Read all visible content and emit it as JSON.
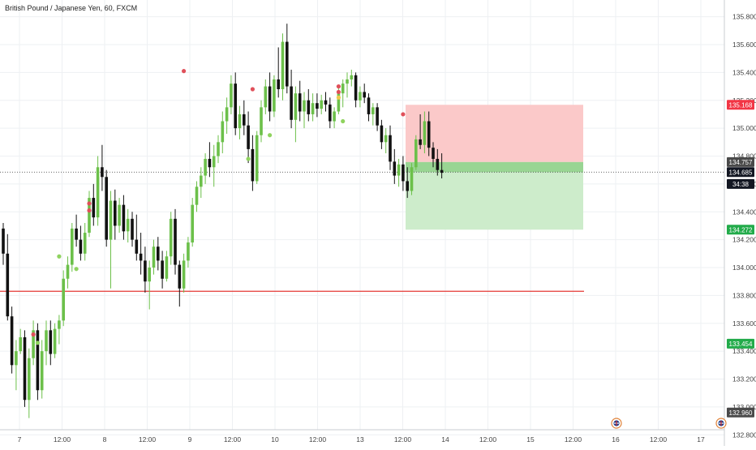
{
  "title": "British Pound / Japanese Yen, 60, FXCM",
  "colors": {
    "up": "#6cc04a",
    "down": "#111111",
    "signal_red": "#e0505a",
    "signal_green": "#8fd35f",
    "signal_yellow": "#f2c94c",
    "level_line": "#e53935",
    "stop_zone": "#fbc9c9",
    "target_zone": "#cdeccb",
    "entry_band": "#8fd18a",
    "tag_red": "#f23645",
    "tag_green": "#22ab4a",
    "tag_dark": "#4a4a4a",
    "tag_black": "#131722",
    "grid": "#eef0f3"
  },
  "chart_data": {
    "type": "candlestick",
    "title": "British Pound / Japanese Yen, 60, FXCM",
    "symbol": "GBPJPY",
    "interval": "60",
    "source": "FXCM",
    "x_ticks": [
      "7",
      "12:00",
      "8",
      "12:00",
      "9",
      "12:00",
      "10",
      "12:00",
      "13",
      "12:00",
      "14",
      "12:00",
      "15",
      "12:00",
      "16",
      "12:00",
      "17"
    ],
    "y_ticks": [
      "135.800",
      "135.600",
      "135.400",
      "135.200",
      "135.000",
      "134.800",
      "134.600",
      "134.400",
      "134.200",
      "134.000",
      "133.800",
      "133.600",
      "133.400",
      "133.200",
      "133.000",
      "132.800"
    ],
    "ylim": [
      132.72,
      135.92
    ],
    "grid": true,
    "price_tags": [
      {
        "label": "135.168",
        "value": 135.168,
        "color": "#f23645"
      },
      {
        "label": "134.757",
        "value": 134.757,
        "color": "#4a4a4a"
      },
      {
        "label": "134.685",
        "value": 134.685,
        "color": "#131722"
      },
      {
        "label": "34:38",
        "value": 134.6,
        "color": "#131722"
      },
      {
        "label": "134.272",
        "value": 134.272,
        "color": "#22ab4a"
      },
      {
        "label": "133.454",
        "value": 133.454,
        "color": "#22ab4a"
      },
      {
        "label": "132.960",
        "value": 132.96,
        "color": "#4a4a4a"
      }
    ],
    "horizontal_level": 133.83,
    "last_price": 134.685,
    "position": {
      "entry": 134.757,
      "stop": 135.168,
      "target": 134.272
    },
    "candles": [
      [
        134.28,
        134.32,
        134.02,
        134.1
      ],
      [
        134.1,
        134.24,
        133.62,
        133.65
      ],
      [
        133.65,
        133.72,
        133.24,
        133.3
      ],
      [
        133.3,
        133.48,
        133.12,
        133.4
      ],
      [
        133.4,
        133.56,
        133.38,
        133.5
      ],
      [
        133.5,
        133.55,
        133.0,
        133.05
      ],
      [
        133.05,
        133.42,
        132.92,
        133.35
      ],
      [
        133.35,
        133.62,
        133.3,
        133.55
      ],
      [
        133.55,
        133.6,
        133.05,
        133.12
      ],
      [
        133.12,
        133.48,
        133.06,
        133.4
      ],
      [
        133.4,
        133.62,
        133.3,
        133.55
      ],
      [
        133.55,
        133.62,
        133.3,
        133.38
      ],
      [
        133.38,
        133.6,
        133.35,
        133.56
      ],
      [
        133.56,
        133.66,
        133.45,
        133.62
      ],
      [
        133.62,
        133.98,
        133.58,
        133.92
      ],
      [
        133.92,
        134.08,
        133.85,
        134.02
      ],
      [
        134.02,
        134.32,
        133.97,
        134.28
      ],
      [
        134.28,
        134.38,
        134.15,
        134.2
      ],
      [
        134.2,
        134.3,
        134.05,
        134.1
      ],
      [
        134.1,
        134.32,
        134.05,
        134.25
      ],
      [
        134.25,
        134.55,
        134.22,
        134.5
      ],
      [
        134.5,
        134.6,
        134.3,
        134.36
      ],
      [
        134.36,
        134.8,
        134.3,
        134.72
      ],
      [
        134.72,
        134.88,
        134.55,
        134.65
      ],
      [
        134.65,
        134.7,
        134.15,
        134.2
      ],
      [
        134.2,
        134.55,
        133.85,
        134.48
      ],
      [
        134.48,
        134.56,
        134.2,
        134.3
      ],
      [
        134.3,
        134.5,
        134.25,
        134.45
      ],
      [
        134.45,
        134.52,
        134.2,
        134.26
      ],
      [
        134.26,
        134.42,
        134.18,
        134.35
      ],
      [
        134.35,
        134.4,
        134.15,
        134.2
      ],
      [
        134.2,
        134.38,
        134.05,
        134.1
      ],
      [
        134.1,
        134.25,
        133.95,
        134.05
      ],
      [
        134.05,
        134.15,
        133.82,
        133.9
      ],
      [
        133.9,
        134.05,
        133.7,
        134.0
      ],
      [
        134.0,
        134.2,
        133.95,
        134.15
      ],
      [
        134.15,
        134.22,
        133.98,
        134.05
      ],
      [
        134.05,
        134.12,
        133.85,
        133.92
      ],
      [
        133.92,
        134.12,
        133.9,
        134.08
      ],
      [
        134.08,
        134.4,
        134.02,
        134.35
      ],
      [
        134.35,
        134.42,
        133.95,
        134.02
      ],
      [
        134.02,
        134.05,
        133.72,
        133.85
      ],
      [
        133.85,
        134.1,
        133.82,
        134.05
      ],
      [
        134.05,
        134.22,
        134.0,
        134.18
      ],
      [
        134.18,
        134.5,
        134.15,
        134.45
      ],
      [
        134.45,
        134.62,
        134.4,
        134.58
      ],
      [
        134.58,
        134.72,
        134.5,
        134.66
      ],
      [
        134.66,
        134.82,
        134.6,
        134.78
      ],
      [
        134.78,
        134.9,
        134.65,
        134.72
      ],
      [
        134.72,
        134.88,
        134.58,
        134.8
      ],
      [
        134.8,
        134.95,
        134.75,
        134.9
      ],
      [
        134.9,
        135.12,
        134.82,
        135.05
      ],
      [
        135.05,
        135.22,
        134.96,
        135.15
      ],
      [
        135.15,
        135.38,
        135.1,
        135.32
      ],
      [
        135.32,
        135.4,
        134.95,
        135.0
      ],
      [
        135.0,
        135.16,
        134.92,
        135.1
      ],
      [
        135.1,
        135.2,
        134.95,
        135.02
      ],
      [
        135.02,
        135.12,
        134.75,
        134.85
      ],
      [
        134.85,
        134.95,
        134.55,
        134.62
      ],
      [
        134.62,
        134.98,
        134.6,
        134.95
      ],
      [
        134.95,
        135.2,
        134.9,
        135.15
      ],
      [
        135.15,
        135.35,
        135.1,
        135.3
      ],
      [
        135.3,
        135.4,
        135.05,
        135.12
      ],
      [
        135.12,
        135.38,
        135.08,
        135.35
      ],
      [
        135.35,
        135.58,
        135.22,
        135.28
      ],
      [
        135.28,
        135.68,
        135.2,
        135.62
      ],
      [
        135.62,
        135.75,
        135.25,
        135.3
      ],
      [
        135.3,
        135.42,
        135.0,
        135.06
      ],
      [
        135.06,
        135.3,
        134.9,
        135.25
      ],
      [
        135.25,
        135.34,
        135.05,
        135.12
      ],
      [
        135.12,
        135.26,
        135.0,
        135.2
      ],
      [
        135.2,
        135.28,
        135.05,
        135.1
      ],
      [
        135.1,
        135.25,
        135.05,
        135.18
      ],
      [
        135.18,
        135.25,
        135.08,
        135.14
      ],
      [
        135.14,
        135.24,
        135.1,
        135.2
      ],
      [
        135.2,
        135.26,
        135.12,
        135.17
      ],
      [
        135.17,
        135.22,
        135.0,
        135.05
      ],
      [
        135.05,
        135.15,
        135.0,
        135.12
      ],
      [
        135.12,
        135.3,
        135.1,
        135.25
      ],
      [
        135.25,
        135.35,
        135.15,
        135.32
      ],
      [
        135.32,
        135.4,
        135.22,
        135.35
      ],
      [
        135.35,
        135.42,
        135.3,
        135.38
      ],
      [
        135.38,
        135.4,
        135.15,
        135.2
      ],
      [
        135.2,
        135.3,
        135.15,
        135.26
      ],
      [
        135.26,
        135.32,
        135.18,
        135.22
      ],
      [
        135.22,
        135.25,
        135.05,
        135.1
      ],
      [
        135.1,
        135.18,
        135.02,
        135.15
      ],
      [
        135.15,
        135.18,
        134.98,
        135.02
      ],
      [
        135.02,
        135.06,
        134.85,
        134.9
      ],
      [
        134.9,
        135.0,
        134.82,
        134.95
      ],
      [
        134.95,
        135.02,
        134.7,
        134.76
      ],
      [
        134.76,
        134.85,
        134.6,
        134.66
      ],
      [
        134.66,
        134.78,
        134.58,
        134.74
      ],
      [
        134.74,
        134.8,
        134.55,
        134.62
      ],
      [
        134.62,
        134.72,
        134.5,
        134.55
      ],
      [
        134.55,
        134.75,
        134.52,
        134.72
      ],
      [
        134.72,
        134.95,
        134.7,
        134.92
      ],
      [
        134.92,
        135.1,
        134.85,
        134.88
      ],
      [
        134.88,
        135.12,
        134.82,
        135.05
      ],
      [
        135.05,
        135.12,
        134.8,
        134.86
      ],
      [
        134.86,
        134.9,
        134.72,
        134.78
      ],
      [
        134.78,
        134.85,
        134.66,
        134.7
      ],
      [
        134.7,
        134.82,
        134.64,
        134.68
      ]
    ],
    "signals": [
      {
        "i": 7,
        "price": 133.52,
        "color": "red"
      },
      {
        "i": 8,
        "price": 133.46,
        "color": "green"
      },
      {
        "i": 13,
        "price": 134.08,
        "color": "green"
      },
      {
        "i": 20,
        "price": 134.46,
        "color": "red"
      },
      {
        "i": 20,
        "price": 134.41,
        "color": "red"
      },
      {
        "i": 17,
        "price": 133.99,
        "color": "green"
      },
      {
        "i": 42,
        "price": 135.41,
        "color": "red"
      },
      {
        "i": 58,
        "price": 135.28,
        "color": "red"
      },
      {
        "i": 57,
        "price": 134.78,
        "color": "green"
      },
      {
        "i": 62,
        "price": 134.95,
        "color": "green"
      },
      {
        "i": 78,
        "price": 135.3,
        "color": "red"
      },
      {
        "i": 78,
        "price": 135.26,
        "color": "red"
      },
      {
        "i": 78,
        "price": 135.22,
        "color": "yellow"
      },
      {
        "i": 79,
        "price": 135.05,
        "color": "green"
      },
      {
        "i": 93,
        "price": 135.1,
        "color": "red"
      }
    ],
    "event_flags": [
      {
        "label": "UK flag",
        "x_tick": "16"
      },
      {
        "label": "UK flag",
        "x_tick": "17"
      }
    ]
  }
}
